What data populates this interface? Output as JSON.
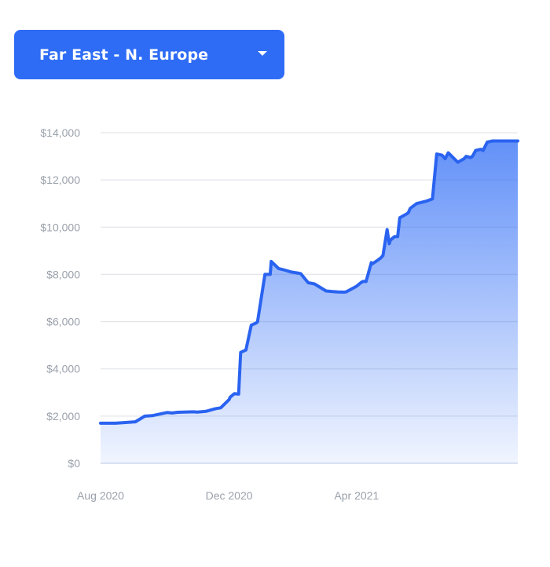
{
  "selector": {
    "label": "Far East - N. Europe",
    "icon": "chevron-down-icon"
  },
  "colors": {
    "accent": "#2e6cf6",
    "line": "#2a63f0",
    "grid": "#e3e6ea",
    "tick_text": "#9aa1ab"
  },
  "chart_data": {
    "type": "area",
    "title": "",
    "xlabel": "",
    "ylabel": "",
    "grid": true,
    "ylim": [
      0,
      14000
    ],
    "xlim": [
      "2020-08-01",
      "2021-09-01"
    ],
    "y_ticks": [
      {
        "value": 0,
        "label": "$0"
      },
      {
        "value": 2000,
        "label": "$2,000"
      },
      {
        "value": 4000,
        "label": "$4,000"
      },
      {
        "value": 6000,
        "label": "$6,000"
      },
      {
        "value": 8000,
        "label": "$8,000"
      },
      {
        "value": 10000,
        "label": "$10,000"
      },
      {
        "value": 12000,
        "label": "$12,000"
      },
      {
        "value": 14000,
        "label": "$14,000"
      }
    ],
    "x_ticks": [
      {
        "value": "2020-08-01",
        "label": "Aug 2020"
      },
      {
        "value": "2020-12-01",
        "label": "Dec 2020"
      },
      {
        "value": "2021-04-01",
        "label": "Apr 2021"
      }
    ],
    "series": [
      {
        "name": "",
        "x": [
          "2020-08-01",
          "2020-08-15",
          "2020-08-22",
          "2020-09-03",
          "2020-09-12",
          "2020-09-19",
          "2020-10-03",
          "2020-10-08",
          "2020-10-13",
          "2020-10-28",
          "2020-11-01",
          "2020-11-09",
          "2020-11-17",
          "2020-11-19",
          "2020-11-23",
          "2020-12-01",
          "2020-12-02",
          "2020-12-06",
          "2020-12-10",
          "2020-12-12",
          "2020-12-17",
          "2020-12-22",
          "2020-12-27",
          "2020-12-28",
          "2021-01-04",
          "2021-01-09",
          "2021-01-10",
          "2021-01-17",
          "2021-01-23",
          "2021-01-29",
          "2021-02-05",
          "2021-02-07",
          "2021-02-14",
          "2021-02-20",
          "2021-03-03",
          "2021-03-08",
          "2021-03-14",
          "2021-03-20",
          "2021-03-22",
          "2021-04-01",
          "2021-04-05",
          "2021-04-07",
          "2021-04-10",
          "2021-04-15",
          "2021-04-16",
          "2021-04-21",
          "2021-04-24",
          "2021-04-26",
          "2021-04-30",
          "2021-05-02",
          "2021-05-03",
          "2021-05-07",
          "2021-05-10",
          "2021-05-12",
          "2021-05-16",
          "2021-05-20",
          "2021-05-22",
          "2021-05-28",
          "2021-06-06",
          "2021-06-12",
          "2021-06-16",
          "2021-06-21",
          "2021-06-24",
          "2021-06-27",
          "2021-07-06",
          "2021-07-12",
          "2021-07-14",
          "2021-07-18",
          "2021-07-20",
          "2021-07-23",
          "2021-07-28",
          "2021-07-30",
          "2021-08-03",
          "2021-08-08",
          "2021-08-11",
          "2021-08-14",
          "2021-08-21",
          "2021-08-25",
          "2021-08-28",
          "2021-08-30",
          "2021-09-01"
        ],
        "values": [
          1700,
          1700,
          1720,
          1760,
          2000,
          2020,
          2150,
          2130,
          2160,
          2180,
          2170,
          2200,
          2300,
          2320,
          2350,
          2700,
          2800,
          2950,
          2930,
          4700,
          4800,
          5850,
          5950,
          6000,
          8000,
          8000,
          8550,
          8250,
          8180,
          8100,
          8050,
          8030,
          7650,
          7600,
          7300,
          7280,
          7260,
          7250,
          7260,
          7500,
          7650,
          7700,
          7700,
          8500,
          8450,
          8600,
          8700,
          8800,
          9900,
          9300,
          9450,
          9600,
          9600,
          10400,
          10500,
          10600,
          10800,
          11000,
          11100,
          11200,
          13100,
          13050,
          12900,
          13150,
          12750,
          12900,
          13000,
          12950,
          13000,
          13250,
          13300,
          13250,
          13600,
          13650,
          13650,
          13650,
          13650,
          13650,
          13650,
          13650,
          13650
        ]
      }
    ]
  }
}
